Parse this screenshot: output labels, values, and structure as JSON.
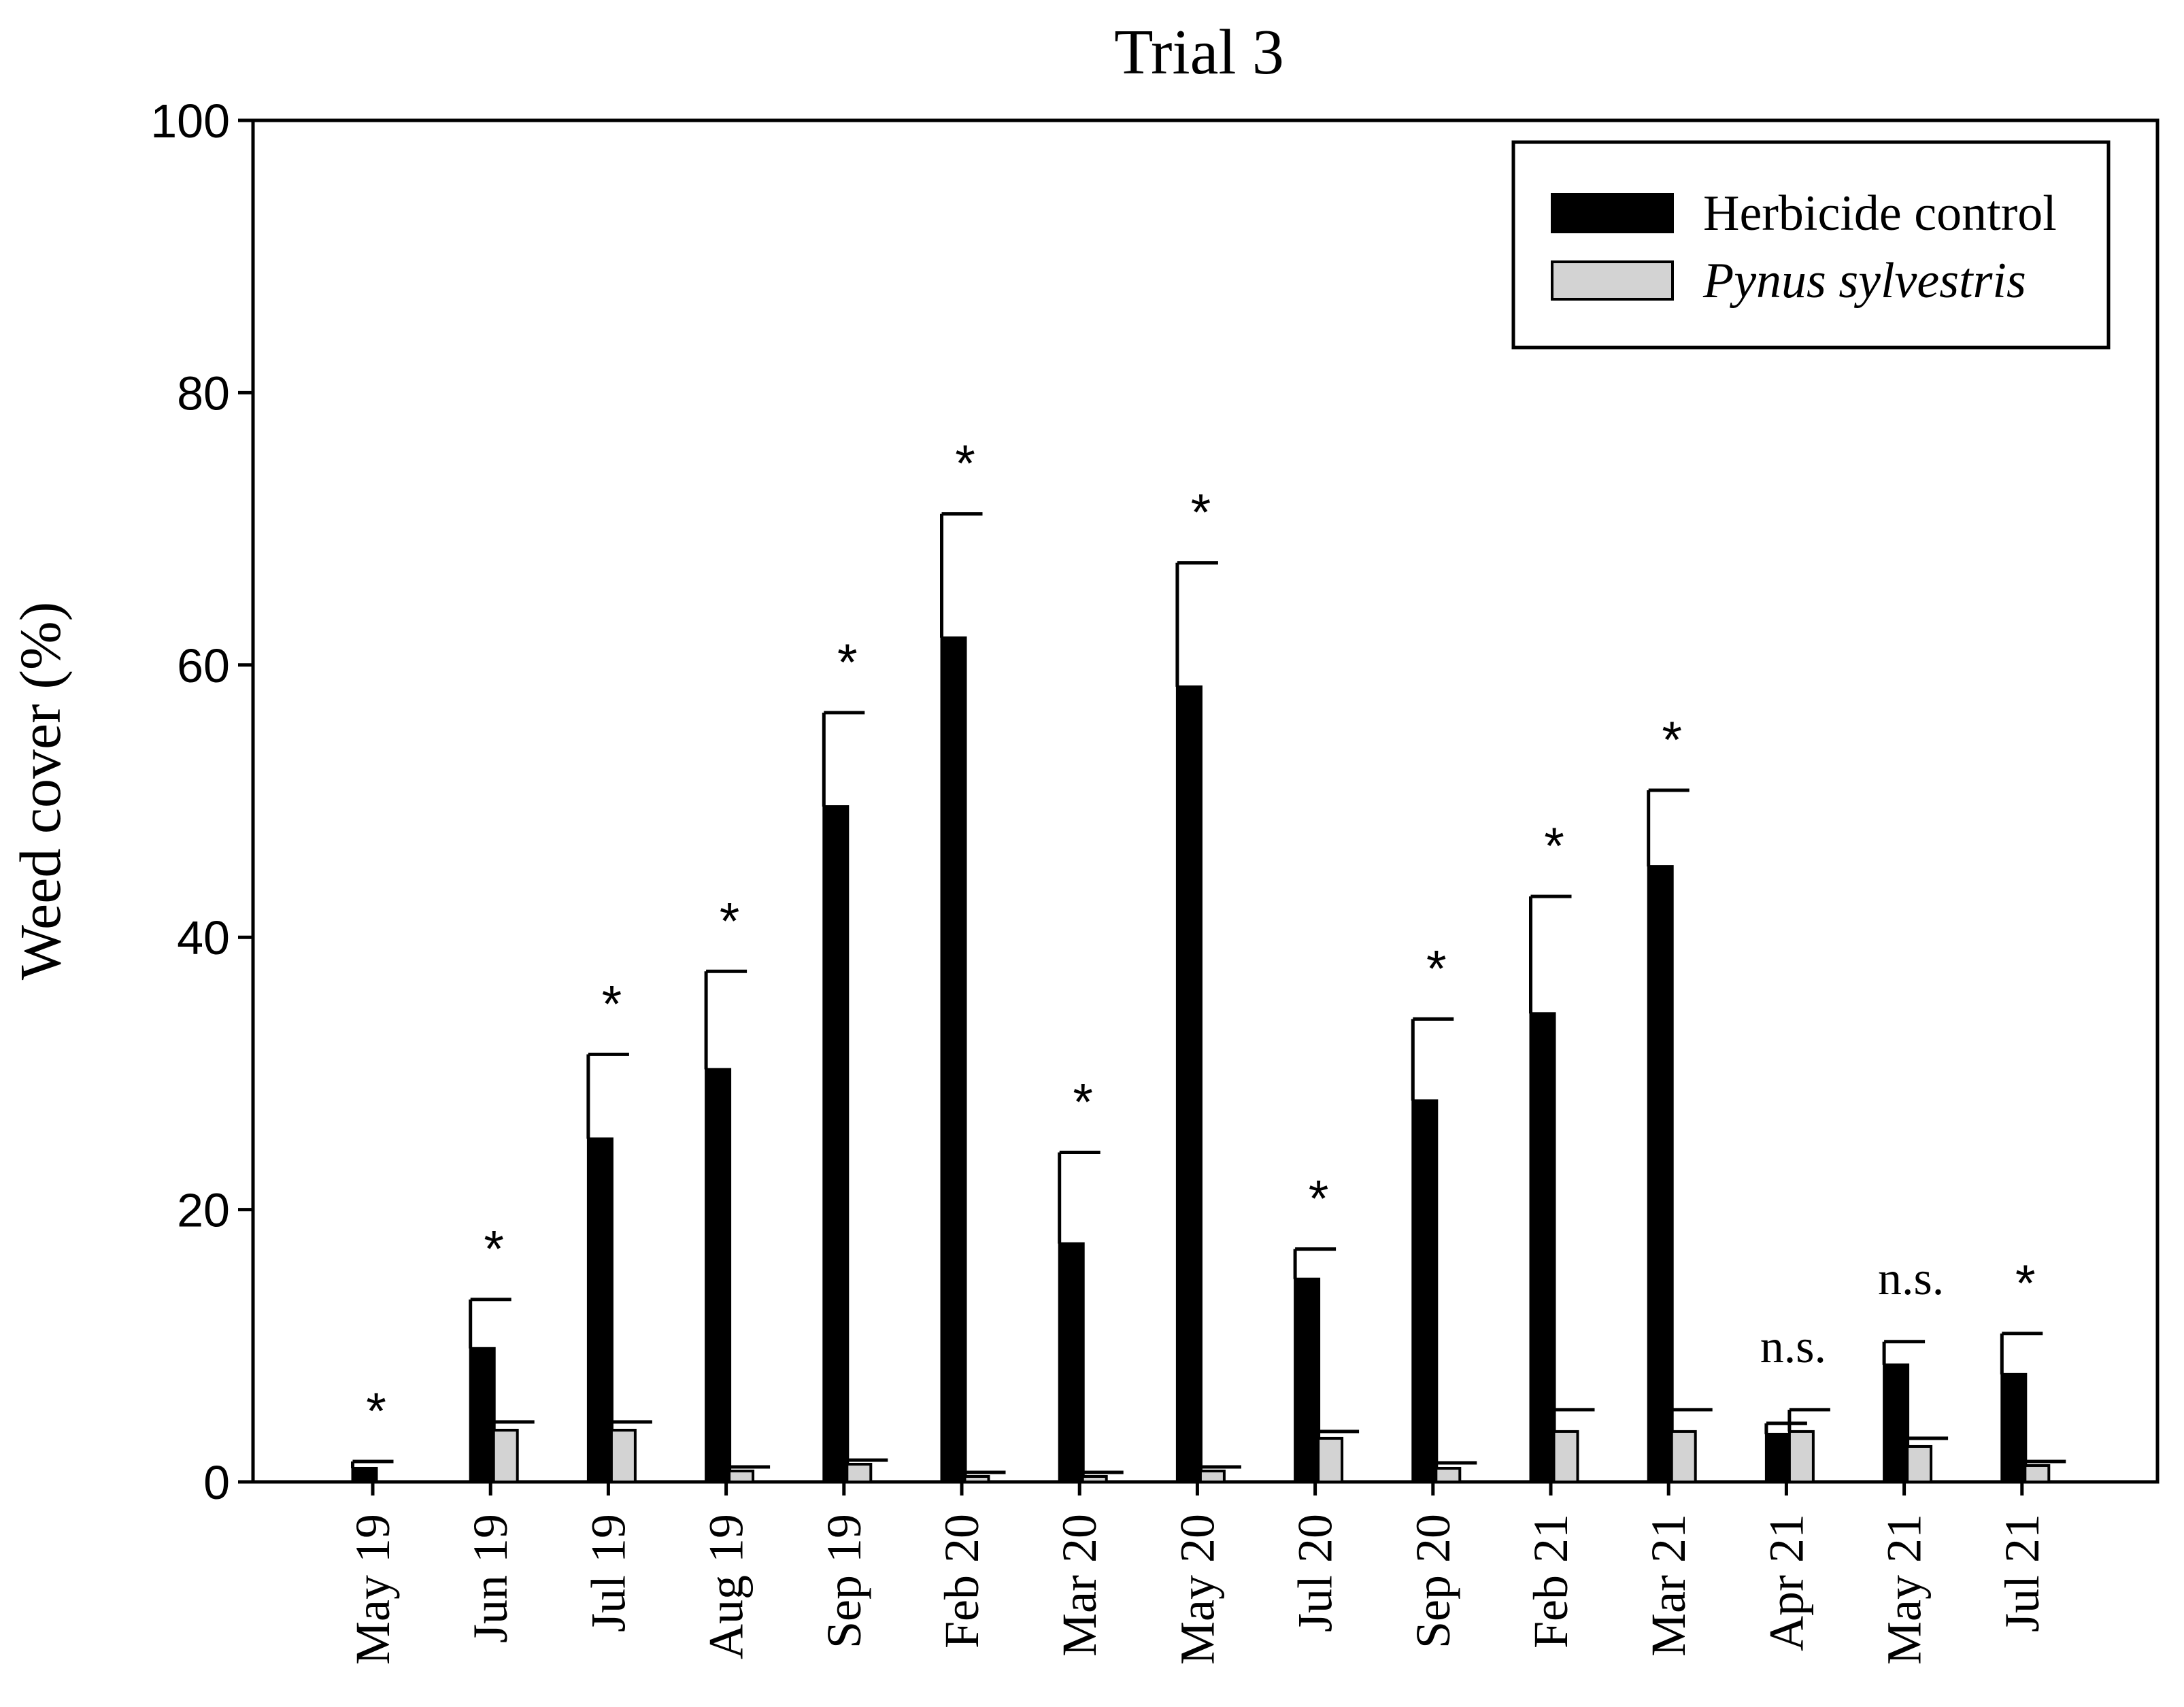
{
  "chart_data": {
    "type": "bar",
    "title": "Trial 3",
    "xlabel": "",
    "ylabel": "Weed cover (%)",
    "ylim": [
      0,
      100
    ],
    "yticks": [
      0,
      20,
      40,
      60,
      80,
      100
    ],
    "categories": [
      "May 19",
      "Jun 19",
      "Jul 19",
      "Aug 19",
      "Sep 19",
      "Feb 20",
      "Mar 20",
      "May 20",
      "Jul 20",
      "Sep 20",
      "Feb 21",
      "Mar 21",
      "Apr 21",
      "May 21",
      "Jul 21"
    ],
    "series": [
      {
        "name": "Herbicide control",
        "italic": false,
        "color": "#000000",
        "values": [
          1.0,
          9.8,
          25.2,
          30.3,
          49.6,
          62.0,
          17.5,
          58.4,
          14.9,
          28.0,
          34.4,
          45.2,
          3.5,
          8.6,
          7.9
        ],
        "errors": [
          0.5,
          3.6,
          6.2,
          7.2,
          6.9,
          9.1,
          6.7,
          9.1,
          2.2,
          6.0,
          8.6,
          5.6,
          0.8,
          1.7,
          3.0
        ]
      },
      {
        "name": "Pynus sylvestris",
        "italic": true,
        "color": "#d3d3d3",
        "values": [
          0,
          3.8,
          3.8,
          0.8,
          1.3,
          0.4,
          0.4,
          0.8,
          3.2,
          1.0,
          3.7,
          3.7,
          3.7,
          2.6,
          1.2
        ],
        "errors": [
          0,
          0.6,
          0.6,
          0.3,
          0.3,
          0.3,
          0.3,
          0.3,
          0.5,
          0.4,
          1.6,
          1.6,
          1.6,
          0.6,
          0.3
        ]
      }
    ],
    "annotations": [
      "*",
      "*",
      "*",
      "*",
      "*",
      "*",
      "*",
      "*",
      "*",
      "*",
      "*",
      "*",
      "n.s.",
      "n.s.",
      "*"
    ],
    "legend_position": "top-right",
    "grid": false
  }
}
